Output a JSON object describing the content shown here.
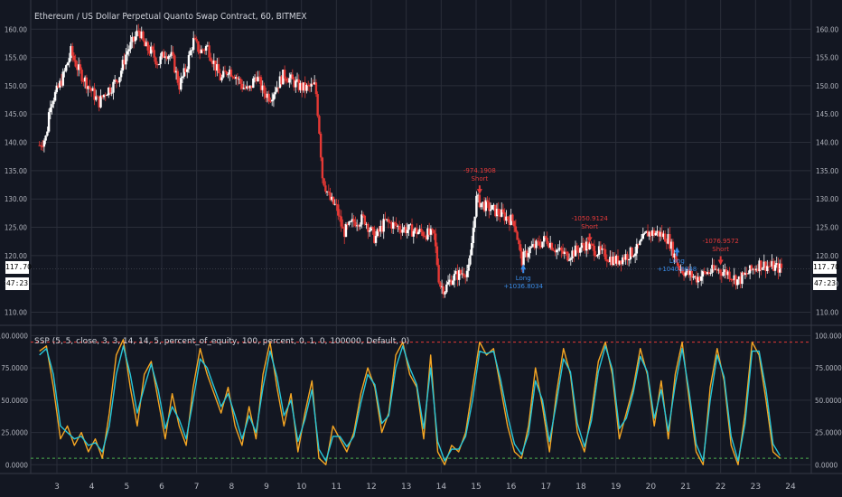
{
  "chart_title": "Ethereum / US Dollar Perpetual Quanto Swap Contract, 60, BITMEX",
  "indicator_title": "SSP (5, 5, close, 3, 3, 14, 14, 5, percent_of_equity, 100, percent, 0, 1, 0, 100000, Default, 0)",
  "price_tag": {
    "price": "117.70",
    "countdown": "47:23"
  },
  "colors": {
    "background": "#131722",
    "grid": "#2a2e39",
    "up_candle": "#ffffff",
    "down_candle": "#e53935",
    "k_line": "#f5a623",
    "d_line": "#26c6da",
    "overbought_line": "#e53935",
    "oversold_line": "#4caf50"
  },
  "chart_data": [
    {
      "type": "candlestick",
      "price_axis_ticks": [
        "160.00",
        "155.00",
        "150.00",
        "145.00",
        "140.00",
        "135.00",
        "130.00",
        "125.00",
        "120.00",
        "115.00",
        "110.00"
      ],
      "x_tick_labels": [
        "3",
        "4",
        "5",
        "6",
        "7",
        "8",
        "9",
        "10",
        "11",
        "12",
        "13",
        "14",
        "15",
        "16",
        "17",
        "18",
        "19",
        "20",
        "21",
        "22",
        "23",
        "24"
      ],
      "ylim": [
        108,
        161
      ],
      "path_points": [
        [
          2.5,
          139.5
        ],
        [
          2.7,
          141
        ],
        [
          2.8,
          147
        ],
        [
          3.0,
          149
        ],
        [
          3.2,
          152
        ],
        [
          3.4,
          156
        ],
        [
          3.6,
          153
        ],
        [
          3.8,
          151
        ],
        [
          4.0,
          149
        ],
        [
          4.2,
          147
        ],
        [
          4.4,
          149
        ],
        [
          4.6,
          150
        ],
        [
          4.8,
          152
        ],
        [
          5.0,
          156
        ],
        [
          5.2,
          158
        ],
        [
          5.35,
          160
        ],
        [
          5.5,
          157
        ],
        [
          5.7,
          156
        ],
        [
          5.9,
          154
        ],
        [
          6.1,
          156
        ],
        [
          6.3,
          155
        ],
        [
          6.5,
          150
        ],
        [
          6.7,
          153
        ],
        [
          6.9,
          158
        ],
        [
          7.1,
          156
        ],
        [
          7.3,
          157
        ],
        [
          7.5,
          154
        ],
        [
          7.7,
          151
        ],
        [
          7.9,
          153
        ],
        [
          8.1,
          152
        ],
        [
          8.3,
          150
        ],
        [
          8.5,
          149
        ],
        [
          8.7,
          152
        ],
        [
          8.9,
          149
        ],
        [
          9.1,
          148
        ],
        [
          9.3,
          150
        ],
        [
          9.5,
          152
        ],
        [
          9.7,
          151
        ],
        [
          9.9,
          150
        ],
        [
          10.1,
          149.5
        ],
        [
          10.4,
          150
        ],
        [
          10.5,
          143
        ],
        [
          10.6,
          134
        ],
        [
          10.8,
          130
        ],
        [
          11.0,
          128.5
        ],
        [
          11.2,
          124
        ],
        [
          11.5,
          126
        ],
        [
          11.8,
          126.5
        ],
        [
          12.1,
          123
        ],
        [
          12.4,
          126
        ],
        [
          12.8,
          125
        ],
        [
          13.1,
          124.5
        ],
        [
          13.5,
          124
        ],
        [
          13.8,
          123.5
        ],
        [
          13.95,
          115
        ],
        [
          14.1,
          114
        ],
        [
          14.3,
          116
        ],
        [
          14.6,
          117
        ],
        [
          14.8,
          117.5
        ],
        [
          15.0,
          130
        ],
        [
          15.2,
          129
        ],
        [
          15.5,
          128
        ],
        [
          15.8,
          127
        ],
        [
          16.1,
          126
        ],
        [
          16.3,
          119
        ],
        [
          16.5,
          121
        ],
        [
          16.8,
          122
        ],
        [
          17.0,
          123
        ],
        [
          17.3,
          121
        ],
        [
          17.6,
          120
        ],
        [
          17.9,
          121
        ],
        [
          18.1,
          122
        ],
        [
          18.4,
          121
        ],
        [
          18.7,
          120
        ],
        [
          19.0,
          119
        ],
        [
          19.3,
          120
        ],
        [
          19.6,
          121
        ],
        [
          19.9,
          124
        ],
        [
          20.2,
          124
        ],
        [
          20.5,
          123
        ],
        [
          20.8,
          118
        ],
        [
          21.0,
          117
        ],
        [
          21.3,
          116
        ],
        [
          21.6,
          117
        ],
        [
          21.9,
          117.5
        ],
        [
          22.2,
          117
        ],
        [
          22.5,
          115.5
        ],
        [
          22.8,
          117
        ],
        [
          23.1,
          118.5
        ],
        [
          23.5,
          118
        ],
        [
          23.75,
          117.7
        ]
      ],
      "trade_annotations": [
        {
          "kind": "short",
          "label": "-974.1908",
          "sub": "Short",
          "x": 15.1,
          "y": 130.8
        },
        {
          "kind": "long",
          "label": "+1036.8034",
          "sub": "Long",
          "x": 16.35,
          "y": 118.5
        },
        {
          "kind": "short",
          "label": "-1050.9124",
          "sub": "Short",
          "x": 18.25,
          "y": 122.3
        },
        {
          "kind": "long",
          "label": "+1040.8848",
          "sub": "Long",
          "x": 20.75,
          "y": 121.5
        },
        {
          "kind": "short",
          "label": "-1076.9572",
          "sub": "Short",
          "x": 22.0,
          "y": 118.3
        }
      ],
      "last_price": 117.7
    },
    {
      "type": "line",
      "indicator_axis_ticks": [
        "100.0000",
        "75.0000",
        "50.0000",
        "25.0000",
        "0.0000"
      ],
      "ylim": [
        -4,
        101
      ],
      "overbought": 95,
      "oversold": 5,
      "series": [
        {
          "role": "k_line",
          "x": [
            2.5,
            2.7,
            2.9,
            3.1,
            3.3,
            3.5,
            3.7,
            3.9,
            4.1,
            4.3,
            4.5,
            4.7,
            4.9,
            5.1,
            5.3,
            5.5,
            5.7,
            5.9,
            6.1,
            6.3,
            6.5,
            6.7,
            6.9,
            7.1,
            7.3,
            7.5,
            7.7,
            7.9,
            8.1,
            8.3,
            8.5,
            8.7,
            8.9,
            9.1,
            9.3,
            9.5,
            9.7,
            9.9,
            10.1,
            10.3,
            10.5,
            10.7,
            10.9,
            11.1,
            11.3,
            11.5,
            11.7,
            11.9,
            12.1,
            12.3,
            12.5,
            12.7,
            12.9,
            13.1,
            13.3,
            13.5,
            13.7,
            13.9,
            14.1,
            14.3,
            14.5,
            14.7,
            14.9,
            15.1,
            15.3,
            15.5,
            15.7,
            15.9,
            16.1,
            16.3,
            16.5,
            16.7,
            16.9,
            17.1,
            17.3,
            17.5,
            17.7,
            17.9,
            18.1,
            18.3,
            18.5,
            18.7,
            18.9,
            19.1,
            19.3,
            19.5,
            19.7,
            19.9,
            20.1,
            20.3,
            20.5,
            20.7,
            20.9,
            21.1,
            21.3,
            21.5,
            21.7,
            21.9,
            22.1,
            22.3,
            22.5,
            22.7,
            22.9,
            23.1,
            23.3,
            23.5,
            23.7
          ],
          "values": [
            88,
            92,
            60,
            20,
            30,
            15,
            25,
            10,
            20,
            5,
            40,
            85,
            97,
            60,
            30,
            70,
            80,
            50,
            20,
            55,
            30,
            15,
            60,
            90,
            70,
            55,
            40,
            60,
            30,
            15,
            45,
            20,
            70,
            95,
            60,
            30,
            55,
            10,
            40,
            65,
            5,
            0,
            30,
            20,
            10,
            25,
            55,
            75,
            60,
            25,
            40,
            85,
            95,
            70,
            60,
            20,
            85,
            10,
            0,
            15,
            10,
            25,
            60,
            95,
            85,
            90,
            60,
            30,
            10,
            5,
            30,
            75,
            45,
            10,
            55,
            90,
            70,
            25,
            10,
            40,
            80,
            95,
            70,
            20,
            40,
            60,
            90,
            70,
            30,
            65,
            20,
            70,
            95,
            50,
            10,
            0,
            60,
            90,
            65,
            15,
            0,
            40,
            95,
            85,
            50,
            10,
            5
          ]
        },
        {
          "role": "d_line",
          "x": [
            2.5,
            2.7,
            2.9,
            3.1,
            3.3,
            3.5,
            3.7,
            3.9,
            4.1,
            4.3,
            4.5,
            4.7,
            4.9,
            5.1,
            5.3,
            5.5,
            5.7,
            5.9,
            6.1,
            6.3,
            6.5,
            6.7,
            6.9,
            7.1,
            7.3,
            7.5,
            7.7,
            7.9,
            8.1,
            8.3,
            8.5,
            8.7,
            8.9,
            9.1,
            9.3,
            9.5,
            9.7,
            9.9,
            10.1,
            10.3,
            10.5,
            10.7,
            10.9,
            11.1,
            11.3,
            11.5,
            11.7,
            11.9,
            12.1,
            12.3,
            12.5,
            12.7,
            12.9,
            13.1,
            13.3,
            13.5,
            13.7,
            13.9,
            14.1,
            14.3,
            14.5,
            14.7,
            14.9,
            15.1,
            15.3,
            15.5,
            15.7,
            15.9,
            16.1,
            16.3,
            16.5,
            16.7,
            16.9,
            17.1,
            17.3,
            17.5,
            17.7,
            17.9,
            18.1,
            18.3,
            18.5,
            18.7,
            18.9,
            19.1,
            19.3,
            19.5,
            19.7,
            19.9,
            20.1,
            20.3,
            20.5,
            20.7,
            20.9,
            21.1,
            21.3,
            21.5,
            21.7,
            21.9,
            22.1,
            22.3,
            22.5,
            22.7,
            22.9,
            23.1,
            23.3,
            23.5,
            23.7
          ],
          "values": [
            85,
            90,
            70,
            30,
            25,
            20,
            22,
            15,
            17,
            10,
            30,
            70,
            92,
            70,
            40,
            60,
            78,
            58,
            28,
            45,
            35,
            20,
            50,
            82,
            75,
            60,
            45,
            55,
            38,
            20,
            38,
            25,
            60,
            88,
            68,
            38,
            50,
            18,
            35,
            58,
            12,
            3,
            22,
            22,
            14,
            22,
            48,
            70,
            62,
            32,
            38,
            75,
            92,
            75,
            62,
            28,
            75,
            18,
            3,
            12,
            12,
            22,
            50,
            88,
            86,
            88,
            66,
            38,
            16,
            8,
            24,
            65,
            50,
            18,
            48,
            82,
            72,
            32,
            14,
            34,
            72,
            92,
            74,
            28,
            36,
            56,
            84,
            72,
            36,
            58,
            26,
            62,
            90,
            56,
            16,
            3,
            50,
            85,
            68,
            22,
            3,
            32,
            88,
            88,
            58,
            16,
            7
          ]
        }
      ]
    }
  ]
}
